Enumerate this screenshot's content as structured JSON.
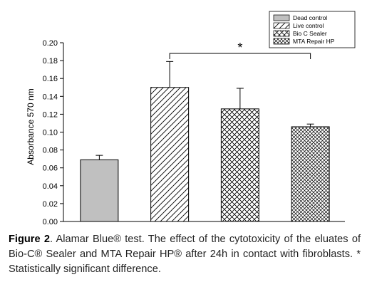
{
  "chart_data": {
    "type": "bar",
    "categories": [
      "Dead control",
      "Live control",
      "Bio C Sealer",
      "MTA Repair HP"
    ],
    "values": [
      0.069,
      0.15,
      0.126,
      0.106
    ],
    "errors": [
      0.005,
      0.029,
      0.023,
      0.003
    ],
    "ylabel": "Absorbance 570 nm",
    "xlabel": "",
    "ylim": [
      0,
      0.2
    ],
    "yticks": [
      "0.00",
      "0.02",
      "0.04",
      "0.06",
      "0.08",
      "0.10",
      "0.12",
      "0.14",
      "0.16",
      "0.18",
      "0.20"
    ],
    "legend": {
      "position": "top-right",
      "entries": [
        {
          "label": "Dead control",
          "pattern": "solid-gray"
        },
        {
          "label": "Live control",
          "pattern": "diagonal-hatch"
        },
        {
          "label": "Bio C Sealer",
          "pattern": "cross-hatch"
        },
        {
          "label": "MTA Repair HP",
          "pattern": "fine-cross-hatch"
        }
      ]
    },
    "significance": {
      "from_category": "Live control",
      "to_category": "MTA Repair HP",
      "label": "*"
    },
    "colors": {
      "dead_fill": "#c0c0c0",
      "stroke": "#000000"
    }
  },
  "caption": {
    "label": "Figure 2",
    "text": ". Alamar Blue® test. The effect of the cytotoxicity of the eluates of Bio-C® Sealer and MTA Repair HP® after 24h in contact with fibroblasts. * Statistically significant difference."
  }
}
